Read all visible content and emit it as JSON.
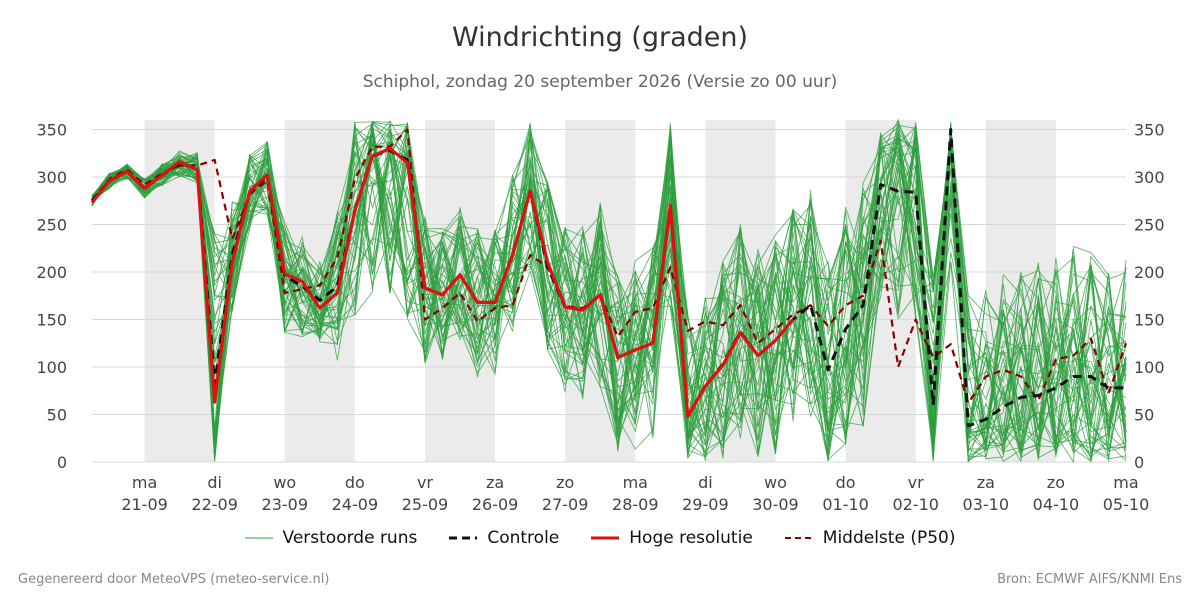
{
  "chart_data": {
    "type": "line",
    "title": "Windrichting (graden)",
    "subtitle": "Schiphol, zondag 20 september 2026 (Versie zo 00 uur)",
    "ylim": [
      0,
      360
    ],
    "y_ticks": [
      0,
      50,
      100,
      150,
      200,
      250,
      300,
      350
    ],
    "x_range": [
      -0.75,
      14
    ],
    "x_ticks": [
      {
        "day": "ma",
        "date": "21-09"
      },
      {
        "day": "di",
        "date": "22-09"
      },
      {
        "day": "wo",
        "date": "23-09"
      },
      {
        "day": "do",
        "date": "24-09"
      },
      {
        "day": "vr",
        "date": "25-09"
      },
      {
        "day": "za",
        "date": "26-09"
      },
      {
        "day": "zo",
        "date": "27-09"
      },
      {
        "day": "ma",
        "date": "28-09"
      },
      {
        "day": "di",
        "date": "29-09"
      },
      {
        "day": "wo",
        "date": "30-09"
      },
      {
        "day": "do",
        "date": "01-10"
      },
      {
        "day": "vr",
        "date": "02-10"
      },
      {
        "day": "za",
        "date": "03-10"
      },
      {
        "day": "zo",
        "date": "04-10"
      },
      {
        "day": "ma",
        "date": "05-10"
      }
    ],
    "shaded_days": [
      [
        0,
        1
      ],
      [
        2,
        3
      ],
      [
        4,
        5
      ],
      [
        6,
        7
      ],
      [
        8,
        9
      ],
      [
        10,
        11
      ],
      [
        12,
        13
      ]
    ],
    "grid": true,
    "legend_position": "bottom-center",
    "colors": {
      "ensemble": "#2e9e3e",
      "control": "#111111",
      "high_res": "#dd1111",
      "median": "#8b0000",
      "shade": "#ebebeb"
    },
    "series": [
      {
        "name": "Controle",
        "x": [
          -0.75,
          -0.5,
          -0.25,
          0,
          0.25,
          0.5,
          0.75,
          1,
          1.25,
          1.5,
          1.75,
          2,
          2.25,
          2.5,
          2.75,
          3,
          3.25,
          3.5,
          3.75,
          4,
          4.25,
          4.5,
          4.75,
          5,
          5.25,
          5.5,
          5.75,
          6,
          6.25,
          6.5,
          6.75,
          7,
          7.25,
          7.5,
          7.75,
          8,
          8.25,
          8.5,
          8.75,
          9,
          9.25,
          9.5,
          9.75,
          10,
          10.25,
          10.5,
          10.75,
          11,
          11.25,
          11.5,
          11.75,
          12,
          12.25,
          12.5,
          12.75,
          13,
          13.25,
          13.5,
          13.75,
          14
        ],
        "values": [
          275,
          296,
          306,
          288,
          302,
          314,
          310,
          82,
          218,
          285,
          300,
          196,
          185,
          170,
          185,
          265,
          322,
          328,
          318,
          183,
          176,
          197,
          168,
          168,
          218,
          285,
          205,
          163,
          160,
          176,
          110,
          118,
          125,
          270,
          48,
          80,
          103,
          137,
          112,
          128,
          150,
          165,
          97,
          140,
          165,
          292,
          285,
          284,
          60,
          350,
          38,
          45,
          58,
          68,
          70,
          78,
          90,
          90,
          78,
          78
        ]
      },
      {
        "name": "Hoge resolutie",
        "x": [
          -0.75,
          -0.5,
          -0.25,
          0,
          0.25,
          0.5,
          0.75,
          1,
          1.25,
          1.5,
          1.75,
          2,
          2.25,
          2.5,
          2.75,
          3,
          3.25,
          3.5,
          3.75,
          4,
          4.25,
          4.5,
          4.75,
          5,
          5.25,
          5.5,
          5.75,
          6,
          6.25,
          6.5,
          6.75,
          7,
          7.25,
          7.5,
          7.75,
          8,
          8.25,
          8.5,
          8.75,
          9,
          9.25
        ],
        "values": [
          273,
          296,
          306,
          288,
          302,
          316,
          308,
          63,
          210,
          285,
          302,
          198,
          190,
          162,
          178,
          265,
          322,
          330,
          315,
          183,
          176,
          197,
          168,
          168,
          218,
          285,
          210,
          163,
          160,
          176,
          110,
          118,
          125,
          270,
          48,
          80,
          102,
          136,
          112,
          128,
          150
        ]
      },
      {
        "name": "Middelste (P50)",
        "x": [
          -0.75,
          -0.5,
          -0.25,
          0,
          0.25,
          0.5,
          0.75,
          1,
          1.25,
          1.5,
          1.75,
          2,
          2.25,
          2.5,
          2.75,
          3,
          3.25,
          3.5,
          3.75,
          4,
          4.25,
          4.5,
          4.75,
          5,
          5.25,
          5.5,
          5.75,
          6,
          6.25,
          6.5,
          6.75,
          7,
          7.25,
          7.5,
          7.75,
          8,
          8.25,
          8.5,
          8.75,
          9,
          9.25,
          9.5,
          9.75,
          10,
          10.25,
          10.5,
          10.75,
          11,
          11.25,
          11.5,
          11.75,
          12,
          12.25,
          12.5,
          12.75,
          13,
          13.25,
          13.5,
          13.75,
          14
        ],
        "values": [
          275,
          298,
          308,
          292,
          304,
          312,
          312,
          318,
          235,
          282,
          296,
          178,
          182,
          186,
          215,
          298,
          332,
          332,
          350,
          150,
          162,
          178,
          148,
          162,
          165,
          218,
          205,
          164,
          162,
          176,
          132,
          158,
          162,
          205,
          138,
          148,
          144,
          165,
          125,
          140,
          155,
          165,
          143,
          165,
          175,
          233,
          100,
          150,
          110,
          124,
          62,
          90,
          97,
          90,
          65,
          108,
          112,
          130,
          72,
          125
        ]
      }
    ],
    "ensemble": {
      "name": "Verstoorde runs",
      "members": 50,
      "x_start": -0.75,
      "x_step": 0.25,
      "spread": [
        6,
        8,
        8,
        10,
        12,
        14,
        16,
        160,
        60,
        40,
        40,
        60,
        55,
        45,
        80,
        120,
        150,
        160,
        170,
        80,
        70,
        75,
        80,
        80,
        85,
        95,
        90,
        90,
        95,
        100,
        100,
        105,
        105,
        110,
        110,
        110,
        115,
        115,
        115,
        120,
        120,
        125,
        125,
        130,
        130,
        130,
        135,
        135,
        135,
        140,
        140,
        140,
        140,
        140,
        140,
        140,
        140,
        140,
        140,
        140
      ]
    },
    "legend": [
      "Verstoorde runs",
      "Controle",
      "Hoge resolutie",
      "Middelste (P50)"
    ]
  },
  "footer": {
    "left": "Gegenereerd door MeteoVPS (meteo-service.nl)",
    "right": "Bron: ECMWF AIFS/KNMI Ens"
  }
}
